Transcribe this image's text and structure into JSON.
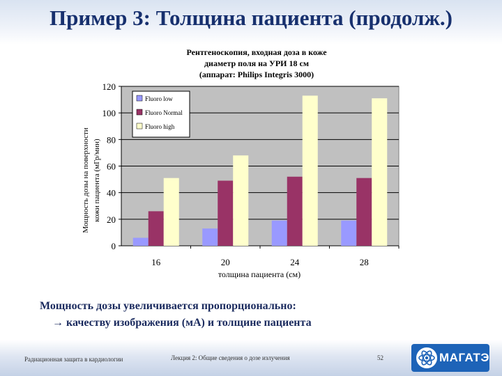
{
  "slide": {
    "title": "Пример 3: Толщина пациента (продолж.)",
    "caption_line1": "Мощность дозы увеличивается пропорционально:",
    "caption_arrow": "→",
    "caption_line2": "качеству изображения (мА) и толщине пациента"
  },
  "footer": {
    "left": "Радиационная защита в кардиологии",
    "center": "Лекция 2: Общие сведения о дозе излучения",
    "page_number": "52",
    "logo_text": "МАГАТЭ"
  },
  "colors": {
    "title": "#17306e",
    "plot_bg": "#c0c0c0",
    "series": [
      "#9999ff",
      "#993366",
      "#ffffcc"
    ]
  },
  "chart_data": {
    "type": "bar",
    "title_lines": [
      "Рентгеноскопия, входная доза в коже",
      "диаметр поля на УРИ 18 см",
      "(аппарат: Philips Integris 3000)"
    ],
    "xlabel": "толщина пациента (см)",
    "ylabel_lines": [
      "Мощность дозы на поверхности",
      "кожи пациента (мГр/мин)"
    ],
    "categories": [
      "16",
      "20",
      "24",
      "28"
    ],
    "ylim": [
      0,
      120
    ],
    "yticks": [
      "0",
      "20",
      "40",
      "60",
      "80",
      "100",
      "120"
    ],
    "grid": true,
    "legend_position": "top-left",
    "series": [
      {
        "name": "Fluoro low",
        "values": [
          6,
          13,
          19,
          19
        ]
      },
      {
        "name": "Fluoro Normal",
        "values": [
          26,
          49,
          52,
          51
        ]
      },
      {
        "name": "Fluoro high",
        "values": [
          51,
          68,
          113,
          111
        ]
      }
    ]
  }
}
